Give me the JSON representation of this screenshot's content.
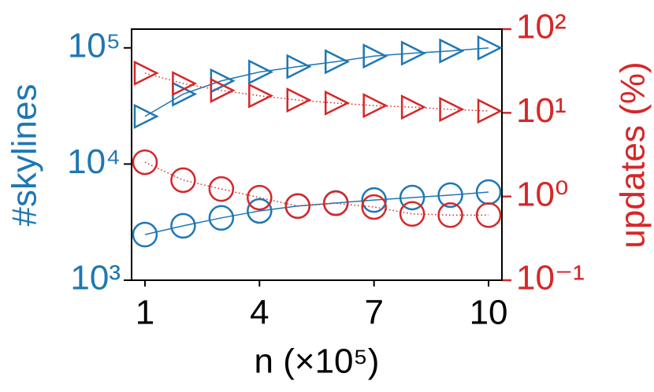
{
  "chart_data": {
    "type": "line",
    "x_label": "n (×10⁵)",
    "y_label": "#skylines",
    "y2_label": "updates (%)",
    "y_color": "#1f77b4",
    "y2_color": "#d62728",
    "x": [
      1,
      2,
      3,
      4,
      5,
      6,
      7,
      8,
      9,
      10
    ],
    "xlim": [
      0.65,
      10.35
    ],
    "xticks": [
      1,
      4,
      7,
      10
    ],
    "ylim": [
      1000,
      145000
    ],
    "ylog": true,
    "yticks": [
      {
        "value": 1000,
        "label": "10³"
      },
      {
        "value": 10000,
        "label": "10⁴"
      },
      {
        "value": 100000,
        "label": "10⁵"
      }
    ],
    "y2lim": [
      0.1,
      100
    ],
    "y2log": true,
    "y2ticks": [
      {
        "value": 0.1,
        "label": "10⁻¹"
      },
      {
        "value": 1,
        "label": "10⁰"
      },
      {
        "value": 10,
        "label": "10¹"
      },
      {
        "value": 100,
        "label": "10²"
      }
    ],
    "series": [
      {
        "color": "#1f77b4",
        "marker": "triangle",
        "linestyle": "solid",
        "axis": "y",
        "values": [
          25700,
          40000,
          52000,
          62000,
          69000,
          76000,
          85000,
          90000,
          94000,
          100000
        ]
      },
      {
        "color": "#1f77b4",
        "marker": "circle",
        "linestyle": "solid",
        "axis": "y",
        "values": [
          2470,
          2940,
          3440,
          3950,
          4350,
          4620,
          4900,
          5150,
          5400,
          5740
        ]
      },
      {
        "color": "#d62728",
        "marker": "triangle",
        "linestyle": "dotted",
        "axis": "y2",
        "values": [
          29.8,
          22.4,
          18.5,
          16,
          14.2,
          13.1,
          12.2,
          11.7,
          11,
          10.5
        ]
      },
      {
        "color": "#d62728",
        "marker": "circle",
        "linestyle": "dotted",
        "axis": "y2",
        "values": [
          2.57,
          1.57,
          1.23,
          0.97,
          0.77,
          0.83,
          0.75,
          0.62,
          0.6,
          0.6
        ]
      }
    ]
  }
}
